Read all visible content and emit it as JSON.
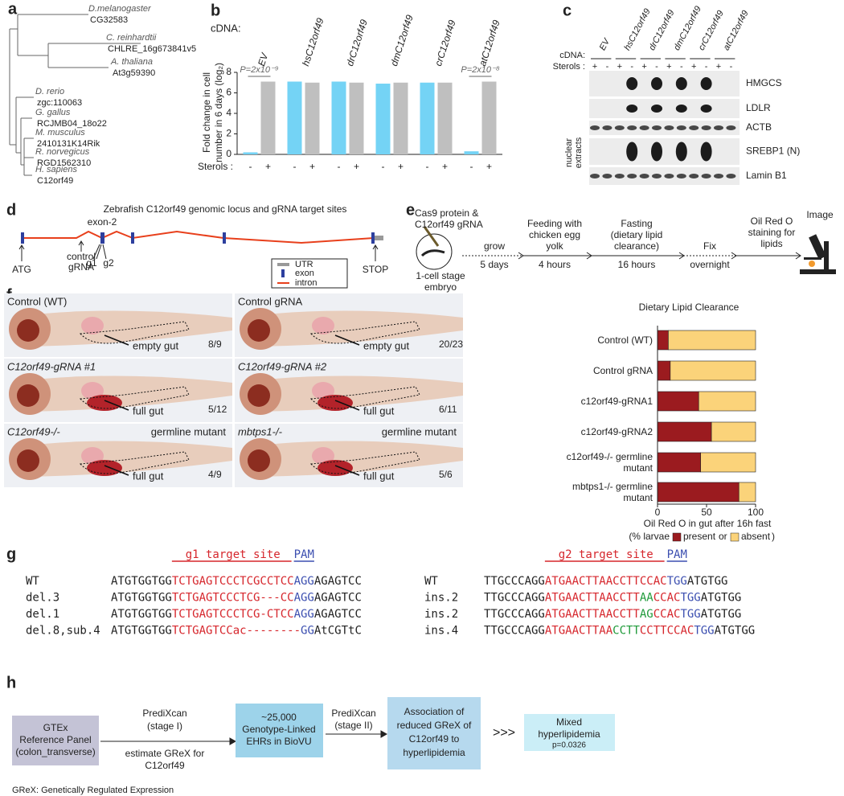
{
  "panel_labels": [
    "a",
    "b",
    "c",
    "d",
    "e",
    "f",
    "g",
    "h"
  ],
  "panel_a": {
    "species": [
      {
        "name": "D.melanogaster",
        "gene": "CG32583"
      },
      {
        "name": "C. reinhardtii",
        "gene": "CHLRE_16g673841v5"
      },
      {
        "name": "A. thaliana",
        "gene": "At3g59390"
      },
      {
        "name": "D. rerio",
        "gene": "zgc:110063"
      },
      {
        "name": "G. gallus",
        "gene": "RCJMB04_18o22"
      },
      {
        "name": "M. musculus",
        "gene": "2410131K14Rik"
      },
      {
        "name": "R. norvegicus",
        "gene": "RGD1562310"
      },
      {
        "name": "H. sapiens",
        "gene": "C12orf49"
      }
    ]
  },
  "chart_data": [
    {
      "type": "bar",
      "orientation": "vertical",
      "group_label": "cDNA:",
      "x_label": "Sterols :",
      "y_label": [
        "Fold change in cell",
        "number in 6 days (log₂)"
      ],
      "categories": [
        "EV",
        "hsC12orf49",
        "drC12orf49",
        "dmC12orf49",
        "crC12orf49",
        "atC12orf49"
      ],
      "series": [
        {
          "name": "-",
          "color": "#74d3f5",
          "values": [
            0.2,
            7.1,
            7.1,
            6.9,
            7.0,
            0.3
          ]
        },
        {
          "name": "+",
          "color": "#bfbfbf",
          "values": [
            7.1,
            7.0,
            7.0,
            7.0,
            7.0,
            7.1
          ]
        }
      ],
      "ylim": [
        0,
        8
      ],
      "yticks": [
        0,
        2,
        4,
        6,
        8
      ],
      "annotations": [
        "P=2x10⁻⁹",
        "P=2x10⁻⁸"
      ]
    },
    {
      "type": "bar",
      "orientation": "horizontal",
      "stacked": true,
      "title": "Dietary Lipid Clearance",
      "categories": [
        "Control (WT)",
        "Control gRNA",
        "c12orf49-gRNA1",
        "c12orf49-gRNA2",
        "c12orf49-/- germline mutant",
        "mbtps1-/- germline mutant"
      ],
      "series": [
        {
          "name": "present",
          "color": "#9b1b1f",
          "values": [
            11,
            13,
            42,
            55,
            44,
            83
          ]
        },
        {
          "name": "absent",
          "color": "#fbd37a",
          "values": [
            89,
            87,
            58,
            45,
            56,
            17
          ]
        }
      ],
      "xlim": [
        0,
        100
      ],
      "xticks": [
        0,
        50,
        100
      ],
      "x_label": "Oil Red O in gut after 16h fast",
      "legend_prefix": "(% larvae",
      "legend_joiner": "or",
      "legend_suffix": ")"
    }
  ],
  "panel_c": {
    "cdna_label": "cDNA:",
    "sterols_label": "Sterols :",
    "lanes": [
      "EV",
      "hsC12orf49",
      "drC12orf49",
      "dmC12orf49",
      "crC12orf49",
      "atC12orf49"
    ],
    "sterol_signs": [
      "+",
      "-"
    ],
    "bands": [
      "HMGCS",
      "LDLR",
      "ACTB",
      "SREBP1 (N)",
      "Lamin B1"
    ],
    "nuclear_label": [
      "nuclear",
      "extracts"
    ]
  },
  "panel_d": {
    "title": "Zebrafish C12orf49 genomic locus and gRNA target sites",
    "exon_label": "exon-2",
    "start": "ATG",
    "control": [
      "control",
      "gRNA"
    ],
    "g1": "g1",
    "g2": "g2",
    "stop": "STOP",
    "legend": [
      "UTR",
      "exon",
      "intron"
    ]
  },
  "panel_e": {
    "injection": [
      "Cas9 protein &",
      "C12orf49 gRNA"
    ],
    "embryo": [
      "1-cell stage",
      "embryo"
    ],
    "steps": [
      {
        "top": [
          "grow"
        ],
        "bottom": "5 days"
      },
      {
        "top": [
          "Feeding with",
          "chicken egg",
          "yolk"
        ],
        "bottom": "4 hours"
      },
      {
        "top": [
          "Fasting",
          "(dietary lipid",
          "clearance)"
        ],
        "bottom": "16 hours"
      },
      {
        "top": [
          "Fix"
        ],
        "bottom": "overnight"
      }
    ],
    "staining": [
      "Oil Red O",
      "staining for",
      "lipids"
    ],
    "image": "Image"
  },
  "panel_f": {
    "images": [
      {
        "title": "Control (WT)",
        "gut": "empty gut",
        "count": "8/9"
      },
      {
        "title": "Control gRNA",
        "gut": "empty gut",
        "count": "20/23"
      },
      {
        "title": "C12orf49-gRNA #1",
        "gut": "full gut",
        "count": "5/12"
      },
      {
        "title": "C12orf49-gRNA #2",
        "gut": "full gut",
        "count": "6/11"
      },
      {
        "title": "C12orf49-/-",
        "subtitle": "germline mutant",
        "gut": "full gut",
        "count": "4/9"
      },
      {
        "title": "mbtps1-/-",
        "subtitle": "germline mutant",
        "gut": "full gut",
        "count": "5/6"
      }
    ]
  },
  "panel_g": {
    "blocks": [
      {
        "target_label": "g1 target site",
        "pam_label": "PAM",
        "rows": [
          {
            "label": "WT",
            "parts": [
              {
                "text": "ATGTGGTGG",
                "color": "#222222"
              },
              {
                "text": "TCTGAGTCCCTCGCCTCC",
                "color": "#d6262c"
              },
              {
                "text": "AGG",
                "color": "#3c4fb0"
              },
              {
                "text": "AGAGTCC",
                "color": "#222222"
              }
            ]
          },
          {
            "label": "del.3",
            "parts": [
              {
                "text": "ATGTGGTGG",
                "color": "#222222"
              },
              {
                "text": "TCTGAGTCCCTCG---CC",
                "color": "#d6262c"
              },
              {
                "text": "AGG",
                "color": "#3c4fb0"
              },
              {
                "text": "AGAGTCC",
                "color": "#222222"
              }
            ]
          },
          {
            "label": "del.1",
            "parts": [
              {
                "text": "ATGTGGTGG",
                "color": "#222222"
              },
              {
                "text": "TCTGAGTCCCTCG-CTCC",
                "color": "#d6262c"
              },
              {
                "text": "AGG",
                "color": "#3c4fb0"
              },
              {
                "text": "AGAGTCC",
                "color": "#222222"
              }
            ]
          },
          {
            "label": "del.8,sub.4",
            "parts": [
              {
                "text": "ATGTGGTGG",
                "color": "#222222"
              },
              {
                "text": "TCTGAGTCCac--------",
                "color": "#d6262c"
              },
              {
                "text": "GG",
                "color": "#3c4fb0"
              },
              {
                "text": "AtCGTtC",
                "color": "#222222"
              }
            ]
          }
        ]
      },
      {
        "target_label": "g2 target site",
        "pam_label": "PAM",
        "rows": [
          {
            "label": "WT",
            "parts": [
              {
                "text": "TTGCCCAGG",
                "color": "#222222"
              },
              {
                "text": "ATGAACTTAACCTTCCAC",
                "color": "#d6262c"
              },
              {
                "text": "TGG",
                "color": "#3c4fb0"
              },
              {
                "text": "ATGTGG",
                "color": "#222222"
              }
            ]
          },
          {
            "label": "ins.2",
            "parts": [
              {
                "text": "TTGCCCAGG",
                "color": "#222222"
              },
              {
                "text": "ATGAACTTAACCTT",
                "color": "#d6262c"
              },
              {
                "text": "AA",
                "color": "#1f9a3a"
              },
              {
                "text": "CCAC",
                "color": "#d6262c"
              },
              {
                "text": "TGG",
                "color": "#3c4fb0"
              },
              {
                "text": "ATGTGG",
                "color": "#222222"
              }
            ]
          },
          {
            "label": "ins.2",
            "parts": [
              {
                "text": "TTGCCCAGG",
                "color": "#222222"
              },
              {
                "text": "ATGAACTTAACCTT",
                "color": "#d6262c"
              },
              {
                "text": "AG",
                "color": "#1f9a3a"
              },
              {
                "text": "CCAC",
                "color": "#d6262c"
              },
              {
                "text": "TGG",
                "color": "#3c4fb0"
              },
              {
                "text": "ATGTGG",
                "color": "#222222"
              }
            ]
          },
          {
            "label": "ins.4",
            "parts": [
              {
                "text": "TTGCCCAGG",
                "color": "#222222"
              },
              {
                "text": "ATGAACTTAA",
                "color": "#d6262c"
              },
              {
                "text": "CCTT",
                "color": "#1f9a3a"
              },
              {
                "text": "CCTTCCAC",
                "color": "#d6262c"
              },
              {
                "text": "TGG",
                "color": "#3c4fb0"
              },
              {
                "text": "ATGTGG",
                "color": "#222222"
              }
            ]
          }
        ]
      }
    ]
  },
  "panel_h": {
    "gtex": [
      "GTEx",
      "Reference Panel",
      "(colon_transverse)"
    ],
    "step1_top": [
      "PrediXcan",
      "(stage I)"
    ],
    "step1_bottom": [
      "estimate GReX for",
      "C12orf49"
    ],
    "biovu": [
      "~25,000",
      "Genotype-Linked",
      "EHRs in BioVU"
    ],
    "step2_top": [
      "PrediXcan",
      "(stage II)"
    ],
    "association": [
      "Association of",
      "reduced GReX of",
      "C12orf49 to",
      "hyperlipidemia"
    ],
    "chevrons": ">>>",
    "result": [
      "Mixed",
      "hyperlipidemia",
      "p=0.0326"
    ],
    "footnote": "GReX: Genetically Regulated Expression"
  }
}
